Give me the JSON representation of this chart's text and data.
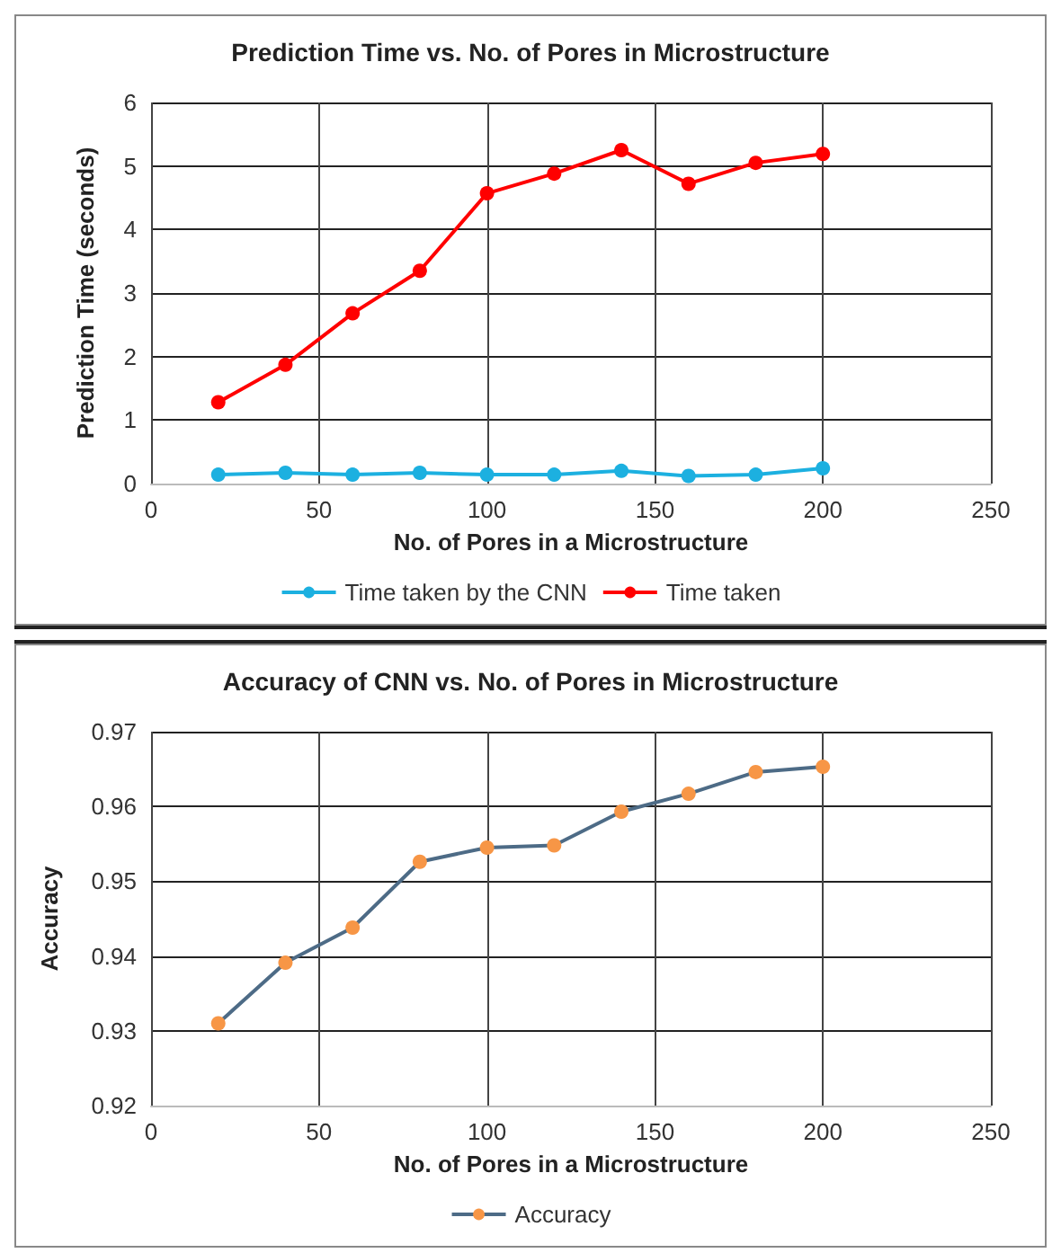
{
  "chart_data": [
    {
      "type": "line",
      "title": "Prediction Time vs. No. of Pores in Microstructure",
      "xlabel": "No. of Pores in a Microstructure",
      "ylabel": "Prediction Time (seconds)",
      "x": [
        20,
        40,
        60,
        80,
        100,
        120,
        140,
        160,
        180,
        200
      ],
      "series": [
        {
          "name": "Time taken by the CNN",
          "color": "#1cb0e0",
          "values": [
            0.14,
            0.17,
            0.14,
            0.17,
            0.14,
            0.14,
            0.2,
            0.12,
            0.14,
            0.24
          ]
        },
        {
          "name": "Time taken",
          "color": "#ff0000",
          "values": [
            1.28,
            1.87,
            2.68,
            3.35,
            4.57,
            4.88,
            5.25,
            4.72,
            5.05,
            5.19
          ]
        }
      ],
      "xlim": [
        0,
        250
      ],
      "xticks": [
        0,
        50,
        100,
        150,
        200,
        250
      ],
      "ylim": [
        0,
        6
      ],
      "yticks": [
        0,
        1,
        2,
        3,
        4,
        5,
        6
      ],
      "grid": true,
      "legend": "bottom",
      "marker": "circle",
      "line_style": "solid"
    },
    {
      "type": "line",
      "title": "Accuracy of CNN vs. No. of Pores in Microstructure",
      "xlabel": "No. of Pores in a Microstructure",
      "ylabel": "Accuracy",
      "x": [
        20,
        40,
        60,
        80,
        100,
        120,
        140,
        160,
        180,
        200
      ],
      "series": [
        {
          "name": "Accuracy",
          "color": "#f79646",
          "values": [
            0.931,
            0.9391,
            0.9438,
            0.9526,
            0.9545,
            0.9548,
            0.9593,
            0.9617,
            0.9646,
            0.9653
          ]
        }
      ],
      "xlim": [
        0,
        250
      ],
      "xticks": [
        0,
        50,
        100,
        150,
        200,
        250
      ],
      "ylim": [
        0.92,
        0.97
      ],
      "yticks": [
        0.92,
        0.93,
        0.94,
        0.95,
        0.96,
        0.97
      ],
      "grid": true,
      "legend": "bottom",
      "marker": "circle",
      "line_style": "solid"
    }
  ]
}
